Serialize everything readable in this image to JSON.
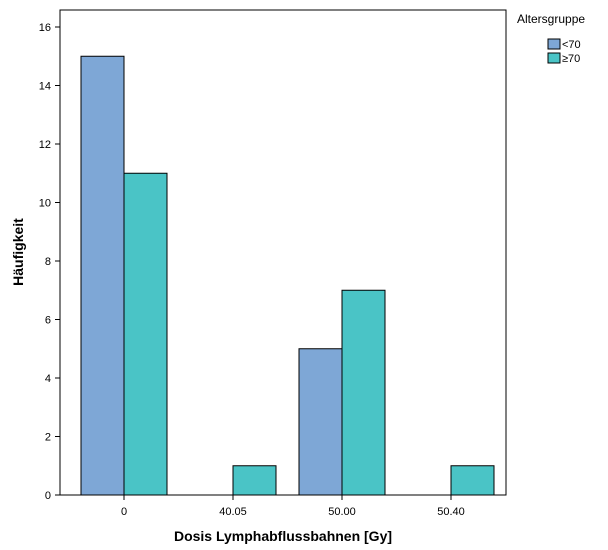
{
  "chart_data": {
    "type": "bar",
    "categories": [
      "0",
      "40.05",
      "50.00",
      "50.40"
    ],
    "series": [
      {
        "name": "<70",
        "values": [
          15,
          0,
          5,
          0
        ],
        "color": "#7ea7d6"
      },
      {
        "name": "≥70",
        "values": [
          11,
          1,
          7,
          1
        ],
        "color": "#4ac4c6"
      }
    ],
    "xlabel": "Dosis Lymphabflussbahnen [Gy]",
    "ylabel": "Häufigkeit",
    "ylim": [
      0,
      16
    ],
    "yticks": [
      "0",
      "2",
      "4",
      "6",
      "8",
      "10",
      "12",
      "14",
      "16"
    ],
    "legend_title": "Altersgruppe",
    "legend_position": "top-right",
    "grid": false
  }
}
